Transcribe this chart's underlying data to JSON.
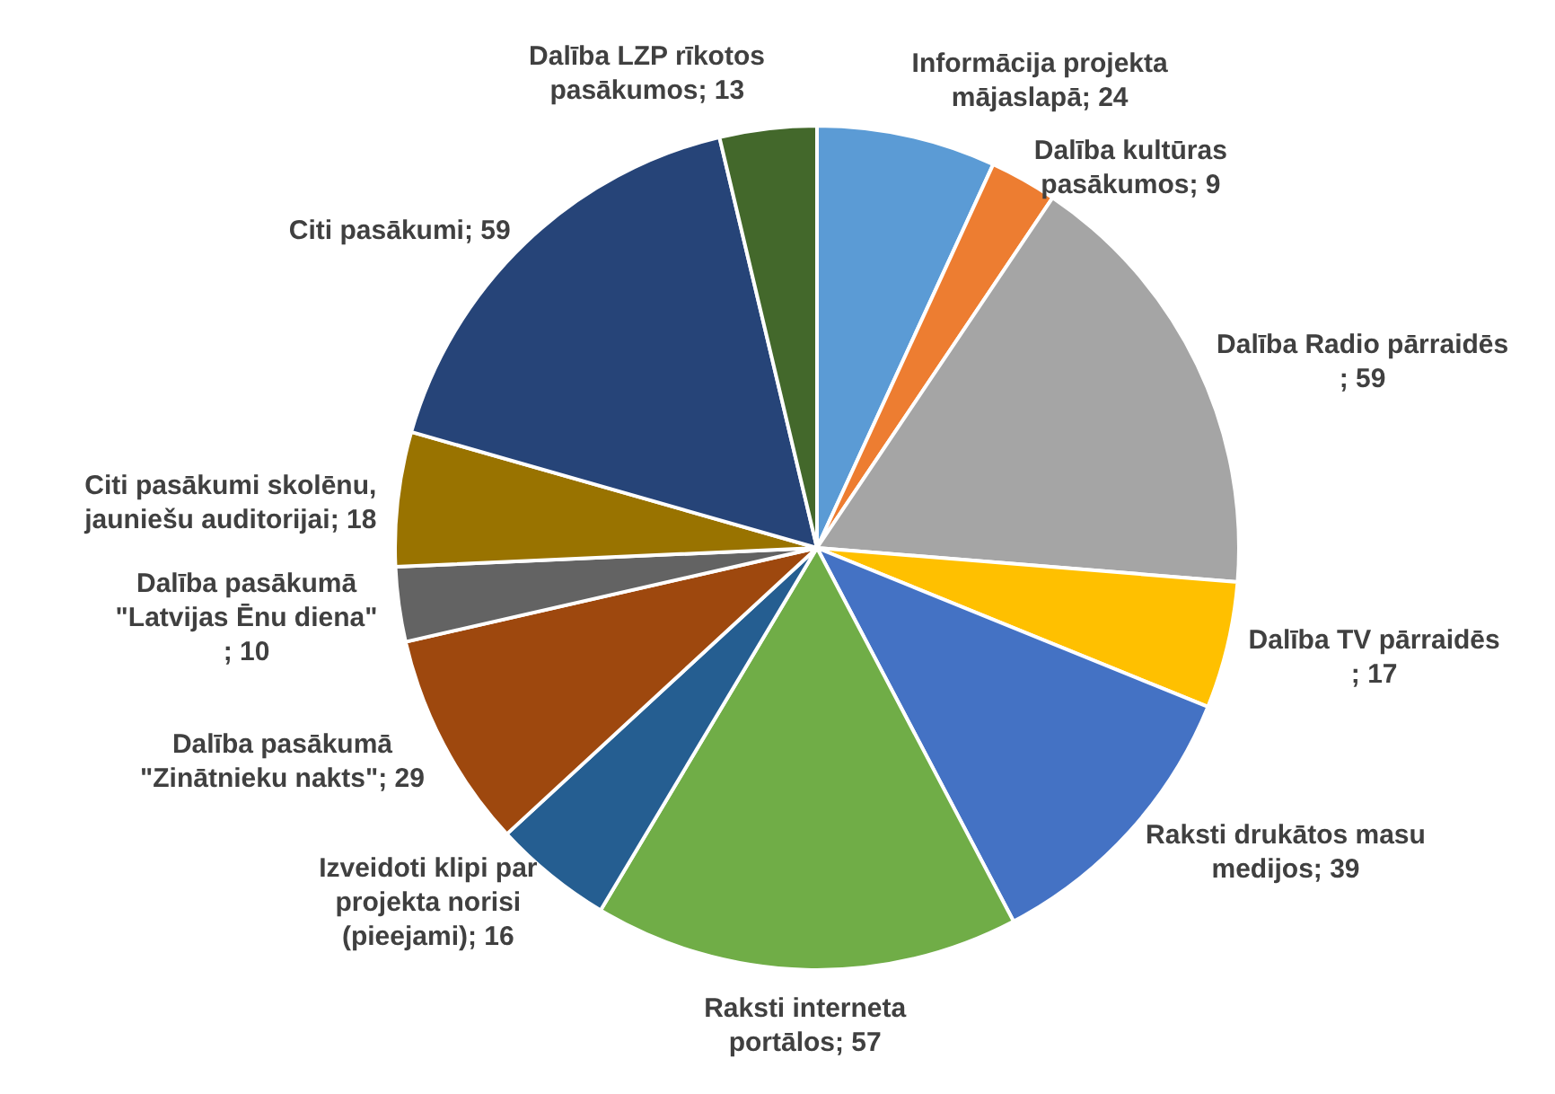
{
  "chart_data": {
    "type": "pie",
    "categories": [
      "Informācija projekta mājaslapā",
      "Dalība kultūras pasākumos",
      "Dalība Radio pārraidēs",
      "Dalība TV pārraidēs",
      "Raksti drukātos masu medijos",
      "Raksti interneta portālos",
      "Izveidoti klipi par projekta norisi (pieejami)",
      "Dalība pasākumā \"Zinātnieku nakts\"",
      "Dalība pasākumā \"Latvijas Ēnu diena\"",
      "Citi pasākumi skolēnu, jauniešu auditorijai",
      "Citi pasākumi",
      "Dalība LZP rīkotos pasākumos"
    ],
    "values": [
      24,
      9,
      59,
      17,
      39,
      57,
      16,
      29,
      10,
      18,
      59,
      13
    ],
    "value_labels": [
      "; 24",
      "; 9",
      "; 59",
      "; 17",
      "; 39",
      "; 57",
      "; 16",
      "; 29",
      "; 10",
      "; 18",
      "; 59",
      "; 13"
    ],
    "colors": [
      "#5b9bd5",
      "#ed7d31",
      "#a5a5a5",
      "#ffc000",
      "#4472c4",
      "#70ad47",
      "#255e91",
      "#9e480e",
      "#636363",
      "#997300",
      "#264478",
      "#43682b"
    ]
  }
}
